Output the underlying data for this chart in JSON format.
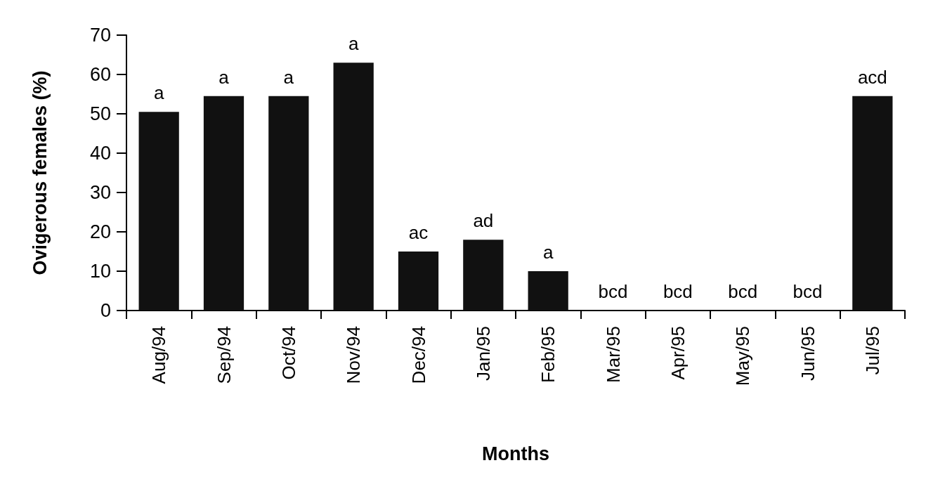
{
  "chart_data": {
    "type": "bar",
    "xlabel": "Months",
    "ylabel": "Ovigerous females (%)",
    "categories": [
      "Aug/94",
      "Sep/94",
      "Oct/94",
      "Nov/94",
      "Dec/94",
      "Jan/95",
      "Feb/95",
      "Mar/95",
      "Apr/95",
      "May/95",
      "Jun/95",
      "Jul/95"
    ],
    "values": [
      50.5,
      54.5,
      54.5,
      63,
      15,
      18,
      10,
      0,
      0,
      0,
      0,
      54.5
    ],
    "value_labels": [
      "a",
      "a",
      "a",
      "a",
      "ac",
      "ad",
      "a",
      "bcd",
      "bcd",
      "bcd",
      "bcd",
      "acd"
    ],
    "color": "#111111",
    "ylim": [
      0,
      70
    ],
    "yticks": [
      0,
      10,
      20,
      30,
      40,
      50,
      60,
      70
    ],
    "grid": false
  }
}
